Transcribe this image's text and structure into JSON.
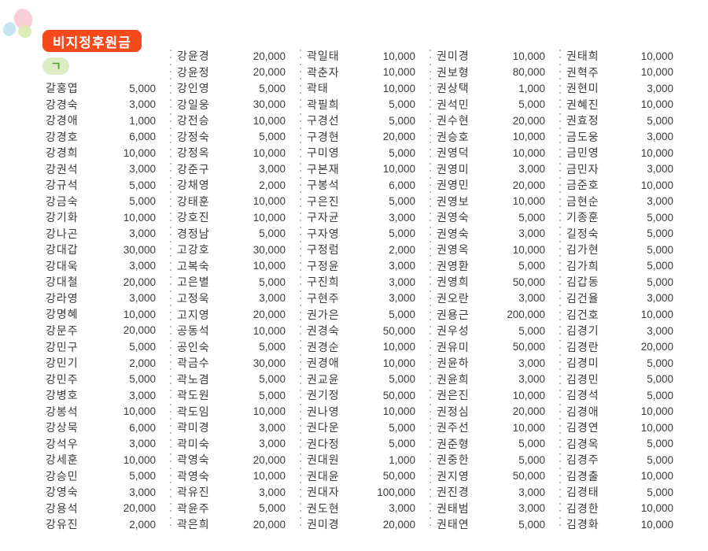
{
  "header": {
    "badge_label": "비지정후원금",
    "section_label": "ㄱ"
  },
  "colors": {
    "badge_bg": "#f74a1c",
    "badge_text": "#ffffff",
    "section_pill_bg": "#dcecc5",
    "section_pill_text": "#4f9f2f",
    "list_text": "#3b3b3b",
    "divider_dots": "#b9b9b9",
    "petal_pink": "#f8ccd7",
    "petal_blue": "#c4e3f1",
    "petal_green": "#d9eaae"
  },
  "donation_list": {
    "columns": [
      {
        "entries": [
          {
            "name": "갈홍엽",
            "amount": "5,000"
          },
          {
            "name": "강경숙",
            "amount": "3,000"
          },
          {
            "name": "강경애",
            "amount": "1,000"
          },
          {
            "name": "강경호",
            "amount": "6,000"
          },
          {
            "name": "강경희",
            "amount": "10,000"
          },
          {
            "name": "강권석",
            "amount": "3,000"
          },
          {
            "name": "강규석",
            "amount": "5,000"
          },
          {
            "name": "강금숙",
            "amount": "5,000"
          },
          {
            "name": "강기화",
            "amount": "10,000"
          },
          {
            "name": "강나곤",
            "amount": "3,000"
          },
          {
            "name": "강대갑",
            "amount": "30,000"
          },
          {
            "name": "강대욱",
            "amount": "3,000"
          },
          {
            "name": "강대철",
            "amount": "20,000"
          },
          {
            "name": "강라영",
            "amount": "3,000"
          },
          {
            "name": "강명혜",
            "amount": "10,000"
          },
          {
            "name": "강문주",
            "amount": "20,000"
          },
          {
            "name": "강민구",
            "amount": "5,000"
          },
          {
            "name": "강민기",
            "amount": "2,000"
          },
          {
            "name": "강민주",
            "amount": "5,000"
          },
          {
            "name": "강병호",
            "amount": "3,000"
          },
          {
            "name": "강봉석",
            "amount": "10,000"
          },
          {
            "name": "강상묵",
            "amount": "6,000"
          },
          {
            "name": "강석우",
            "amount": "3,000"
          },
          {
            "name": "강세훈",
            "amount": "10,000"
          },
          {
            "name": "강승민",
            "amount": "5,000"
          },
          {
            "name": "강영숙",
            "amount": "3,000"
          },
          {
            "name": "강용석",
            "amount": "20,000"
          },
          {
            "name": "강유진",
            "amount": "2,000"
          }
        ]
      },
      {
        "entries": [
          {
            "name": "강윤경",
            "amount": "20,000"
          },
          {
            "name": "강윤정",
            "amount": "20,000"
          },
          {
            "name": "강인영",
            "amount": "5,000"
          },
          {
            "name": "강일웅",
            "amount": "30,000"
          },
          {
            "name": "강전승",
            "amount": "10,000"
          },
          {
            "name": "강정숙",
            "amount": "5,000"
          },
          {
            "name": "강정옥",
            "amount": "10,000"
          },
          {
            "name": "강준구",
            "amount": "3,000"
          },
          {
            "name": "강채영",
            "amount": "2,000"
          },
          {
            "name": "강태훈",
            "amount": "10,000"
          },
          {
            "name": "강호진",
            "amount": "10,000"
          },
          {
            "name": "경정남",
            "amount": "5,000"
          },
          {
            "name": "고강호",
            "amount": "30,000"
          },
          {
            "name": "고복숙",
            "amount": "10,000"
          },
          {
            "name": "고은별",
            "amount": "5,000"
          },
          {
            "name": "고정욱",
            "amount": "3,000"
          },
          {
            "name": "고지영",
            "amount": "20,000"
          },
          {
            "name": "공동석",
            "amount": "10,000"
          },
          {
            "name": "공인숙",
            "amount": "5,000"
          },
          {
            "name": "곽금수",
            "amount": "30,000"
          },
          {
            "name": "곽노겸",
            "amount": "5,000"
          },
          {
            "name": "곽도원",
            "amount": "5,000"
          },
          {
            "name": "곽도임",
            "amount": "10,000"
          },
          {
            "name": "곽미경",
            "amount": "3,000"
          },
          {
            "name": "곽미숙",
            "amount": "3,000"
          },
          {
            "name": "곽영숙",
            "amount": "20,000"
          },
          {
            "name": "곽영숙",
            "amount": "10,000"
          },
          {
            "name": "곽유진",
            "amount": "3,000"
          },
          {
            "name": "곽윤주",
            "amount": "5,000"
          },
          {
            "name": "곽은희",
            "amount": "20,000"
          }
        ]
      },
      {
        "entries": [
          {
            "name": "곽일태",
            "amount": "10,000"
          },
          {
            "name": "곽춘자",
            "amount": "10,000"
          },
          {
            "name": "곽태",
            "amount": "10,000"
          },
          {
            "name": "곽필희",
            "amount": "5,000"
          },
          {
            "name": "구경선",
            "amount": "5,000"
          },
          {
            "name": "구경현",
            "amount": "20,000"
          },
          {
            "name": "구미영",
            "amount": "5,000"
          },
          {
            "name": "구본재",
            "amount": "10,000"
          },
          {
            "name": "구봉석",
            "amount": "6,000"
          },
          {
            "name": "구은진",
            "amount": "5,000"
          },
          {
            "name": "구자균",
            "amount": "3,000"
          },
          {
            "name": "구자영",
            "amount": "5,000"
          },
          {
            "name": "구정럼",
            "amount": "2,000"
          },
          {
            "name": "구정윤",
            "amount": "3,000"
          },
          {
            "name": "구진희",
            "amount": "3,000"
          },
          {
            "name": "구현주",
            "amount": "3,000"
          },
          {
            "name": "권가은",
            "amount": "5,000"
          },
          {
            "name": "권경숙",
            "amount": "50,000"
          },
          {
            "name": "권경순",
            "amount": "10,000"
          },
          {
            "name": "권경애",
            "amount": "10,000"
          },
          {
            "name": "권교윤",
            "amount": "5,000"
          },
          {
            "name": "권기정",
            "amount": "50,000"
          },
          {
            "name": "권나영",
            "amount": "10,000"
          },
          {
            "name": "권다운",
            "amount": "5,000"
          },
          {
            "name": "권다정",
            "amount": "5,000"
          },
          {
            "name": "권대원",
            "amount": "1,000"
          },
          {
            "name": "권대윤",
            "amount": "50,000"
          },
          {
            "name": "권대자",
            "amount": "100,000"
          },
          {
            "name": "권도현",
            "amount": "3,000"
          },
          {
            "name": "권미경",
            "amount": "20,000"
          }
        ]
      },
      {
        "entries": [
          {
            "name": "권미경",
            "amount": "10,000"
          },
          {
            "name": "권보형",
            "amount": "80,000"
          },
          {
            "name": "권상택",
            "amount": "1,000"
          },
          {
            "name": "권석민",
            "amount": "5,000"
          },
          {
            "name": "권수현",
            "amount": "20,000"
          },
          {
            "name": "권승호",
            "amount": "10,000"
          },
          {
            "name": "권영덕",
            "amount": "10,000"
          },
          {
            "name": "권영미",
            "amount": "3,000"
          },
          {
            "name": "권영민",
            "amount": "20,000"
          },
          {
            "name": "권영보",
            "amount": "10,000"
          },
          {
            "name": "권영숙",
            "amount": "5,000"
          },
          {
            "name": "권영숙",
            "amount": "3,000"
          },
          {
            "name": "권영옥",
            "amount": "10,000"
          },
          {
            "name": "권영환",
            "amount": "5,000"
          },
          {
            "name": "권영희",
            "amount": "50,000"
          },
          {
            "name": "권오란",
            "amount": "3,000"
          },
          {
            "name": "권용근",
            "amount": "200,000"
          },
          {
            "name": "권우성",
            "amount": "5,000"
          },
          {
            "name": "권유미",
            "amount": "50,000"
          },
          {
            "name": "권윤하",
            "amount": "3,000"
          },
          {
            "name": "권윤희",
            "amount": "3,000"
          },
          {
            "name": "권은진",
            "amount": "10,000"
          },
          {
            "name": "권정심",
            "amount": "20,000"
          },
          {
            "name": "권주선",
            "amount": "10,000"
          },
          {
            "name": "권준형",
            "amount": "5,000"
          },
          {
            "name": "권중한",
            "amount": "5,000"
          },
          {
            "name": "권지영",
            "amount": "50,000"
          },
          {
            "name": "권진경",
            "amount": "3,000"
          },
          {
            "name": "권태범",
            "amount": "3,000"
          },
          {
            "name": "권태연",
            "amount": "5,000"
          }
        ]
      },
      {
        "entries": [
          {
            "name": "권태희",
            "amount": "10,000"
          },
          {
            "name": "권혁주",
            "amount": "10,000"
          },
          {
            "name": "권현미",
            "amount": "3,000"
          },
          {
            "name": "권혜진",
            "amount": "10,000"
          },
          {
            "name": "권효정",
            "amount": "5,000"
          },
          {
            "name": "금도웅",
            "amount": "3,000"
          },
          {
            "name": "금민영",
            "amount": "10,000"
          },
          {
            "name": "금민자",
            "amount": "3,000"
          },
          {
            "name": "금준호",
            "amount": "10,000"
          },
          {
            "name": "금현순",
            "amount": "3,000"
          },
          {
            "name": "기종훈",
            "amount": "5,000"
          },
          {
            "name": "길정숙",
            "amount": "5,000"
          },
          {
            "name": "김가현",
            "amount": "5,000"
          },
          {
            "name": "김가희",
            "amount": "5,000"
          },
          {
            "name": "김갑동",
            "amount": "5,000"
          },
          {
            "name": "김건율",
            "amount": "3,000"
          },
          {
            "name": "김건호",
            "amount": "10,000"
          },
          {
            "name": "김경기",
            "amount": "3,000"
          },
          {
            "name": "김경란",
            "amount": "20,000"
          },
          {
            "name": "김경미",
            "amount": "5,000"
          },
          {
            "name": "김경민",
            "amount": "5,000"
          },
          {
            "name": "김경석",
            "amount": "5,000"
          },
          {
            "name": "김경애",
            "amount": "10,000"
          },
          {
            "name": "김경연",
            "amount": "10,000"
          },
          {
            "name": "김경옥",
            "amount": "5,000"
          },
          {
            "name": "김경주",
            "amount": "5,000"
          },
          {
            "name": "김경출",
            "amount": "10,000"
          },
          {
            "name": "김경태",
            "amount": "5,000"
          },
          {
            "name": "김경한",
            "amount": "10,000"
          },
          {
            "name": "김경화",
            "amount": "10,000"
          }
        ]
      }
    ]
  }
}
